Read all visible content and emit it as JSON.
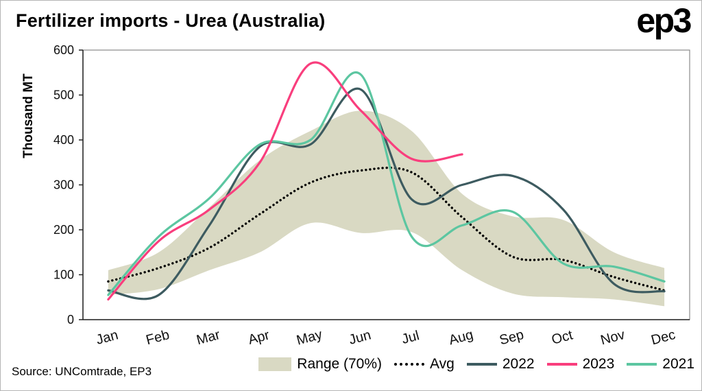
{
  "header": {
    "title": "Fertilizer imports - Urea (Australia)",
    "logo": "ep3"
  },
  "source_note": "Source: UNComtrade, EP3",
  "legend": {
    "range": "Range (70%)",
    "avg": "Avg",
    "y2022": "2022",
    "y2023": "2023",
    "y2021": "2021"
  },
  "colors": {
    "band": "#d9d9c3",
    "avg": "#000000",
    "y2022": "#3d5b60",
    "y2023": "#f93e7d",
    "y2021": "#5cc6a1",
    "axis_box": "#8a8a8a",
    "axis_main": "#222222",
    "text": "#111111"
  },
  "chart_data": {
    "type": "line",
    "title": "Fertilizer imports - Urea (Australia)",
    "ylabel": "Thousand MT",
    "xlabel": "",
    "ylim": [
      0,
      600
    ],
    "yticks": [
      0,
      100,
      200,
      300,
      400,
      500,
      600
    ],
    "categories": [
      "Jan",
      "Feb",
      "Mar",
      "Apr",
      "May",
      "Jun",
      "Jul",
      "Aug",
      "Sep",
      "Oct",
      "Nov",
      "Dec"
    ],
    "grid": false,
    "legend_position": "bottom",
    "band": {
      "name": "Range (70%)",
      "color": "#d9d9c3",
      "upper": [
        110,
        150,
        250,
        355,
        420,
        465,
        420,
        280,
        230,
        222,
        150,
        115
      ],
      "lower": [
        55,
        68,
        110,
        150,
        215,
        193,
        195,
        110,
        58,
        50,
        45,
        30
      ]
    },
    "series": [
      {
        "name": "Avg",
        "style": "dotted",
        "color": "#000000",
        "values": [
          85,
          115,
          160,
          235,
          305,
          332,
          328,
          228,
          140,
          133,
          95,
          65
        ]
      },
      {
        "name": "2022",
        "style": "solid",
        "color": "#3d5b60",
        "values": [
          65,
          55,
          210,
          385,
          390,
          512,
          268,
          300,
          320,
          245,
          80,
          63
        ]
      },
      {
        "name": "2023",
        "style": "solid",
        "color": "#f93e7d",
        "values": [
          45,
          175,
          245,
          350,
          570,
          465,
          358,
          368,
          null,
          null,
          null,
          null
        ]
      },
      {
        "name": "2021",
        "style": "solid",
        "color": "#5cc6a1",
        "values": [
          55,
          185,
          270,
          390,
          400,
          545,
          185,
          210,
          240,
          125,
          118,
          85
        ]
      }
    ]
  }
}
